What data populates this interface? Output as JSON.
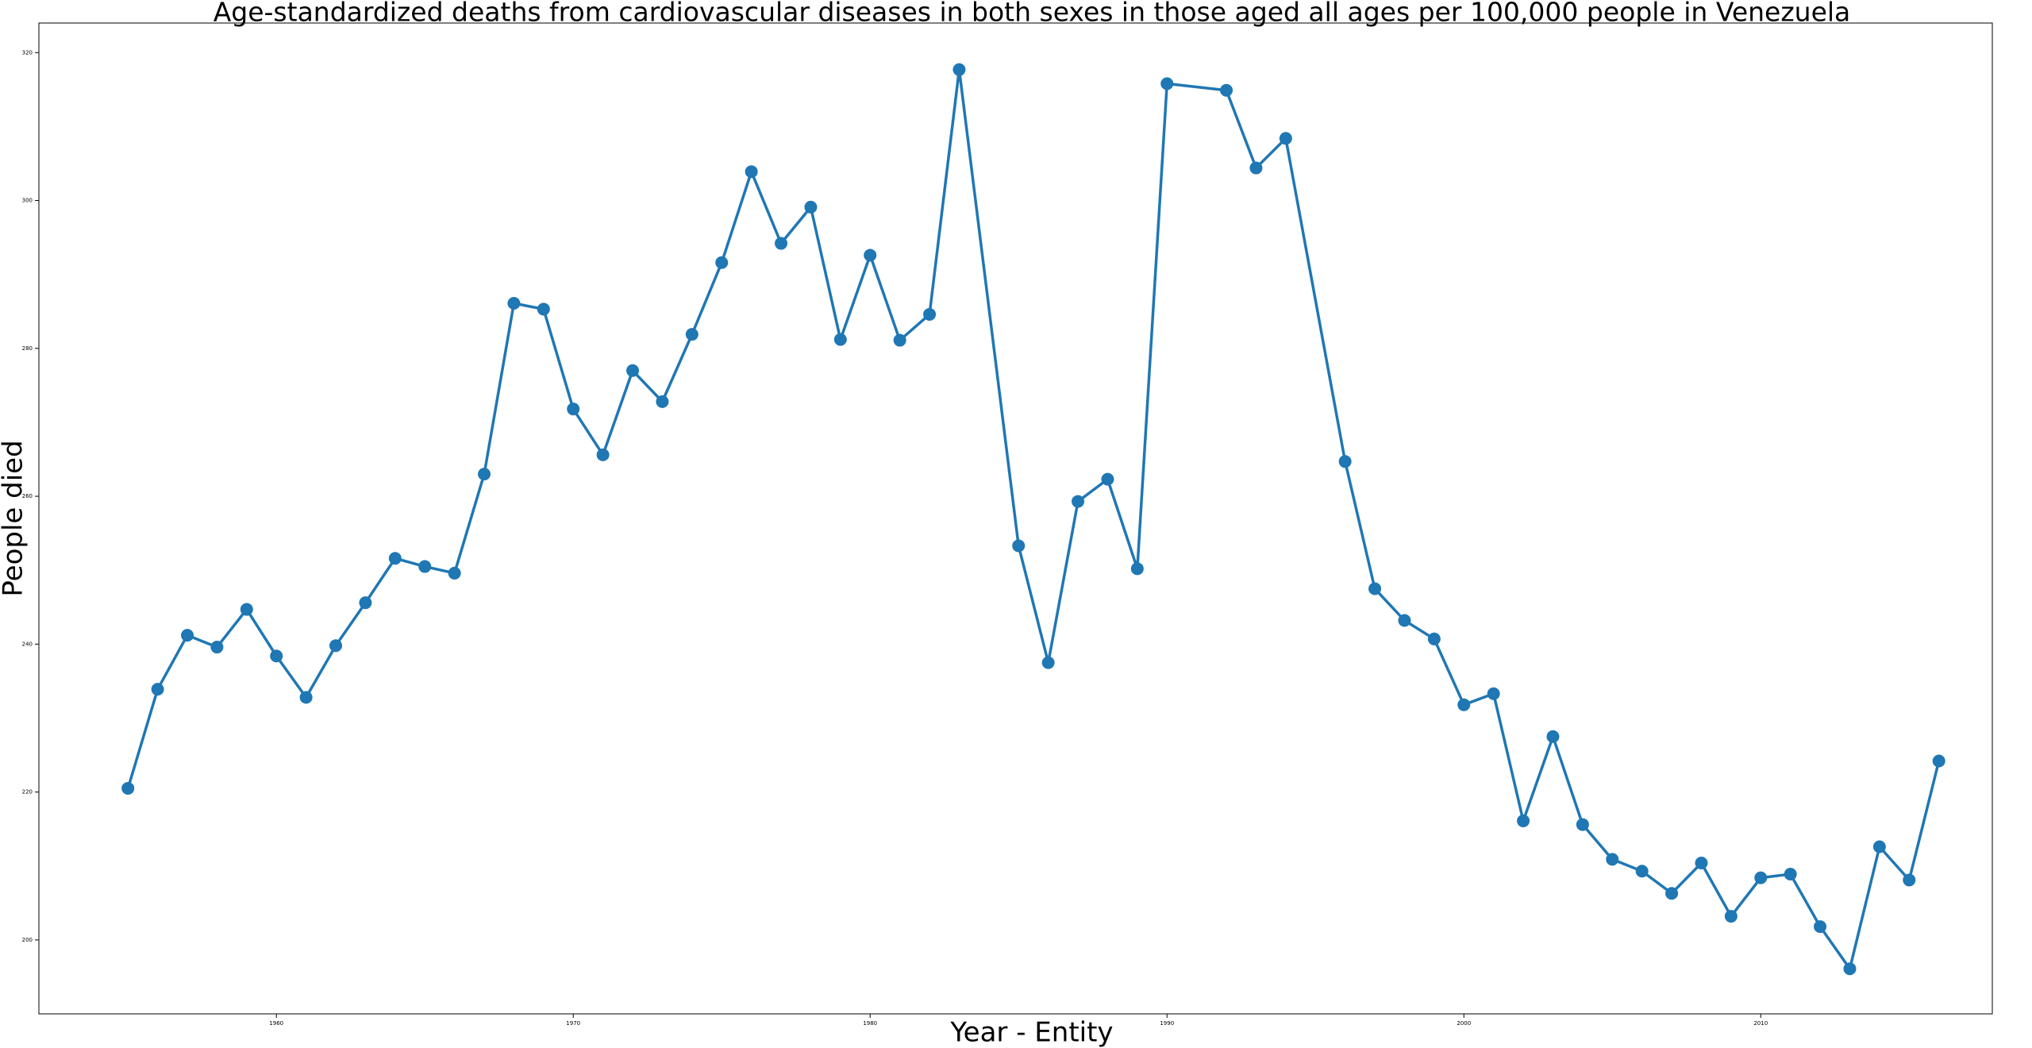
{
  "chart_data": {
    "type": "line",
    "title": "Age-standardized deaths from cardiovascular diseases in both sexes in those aged all ages per 100,000 people in Venezuela",
    "x_label": "Year - Entity",
    "y_label": "People died",
    "x": [
      1955,
      1956,
      1957,
      1958,
      1959,
      1960,
      1961,
      1962,
      1963,
      1964,
      1965,
      1966,
      1967,
      1968,
      1969,
      1970,
      1971,
      1972,
      1973,
      1974,
      1975,
      1976,
      1977,
      1978,
      1979,
      1980,
      1981,
      1982,
      1983,
      1985,
      1986,
      1987,
      1988,
      1989,
      1990,
      1992,
      1993,
      1994,
      1996,
      1997,
      1998,
      1999,
      2000,
      2001,
      2002,
      2003,
      2004,
      2005,
      2006,
      2007,
      2008,
      2009,
      2010,
      2011,
      2012,
      2013,
      2014,
      2015,
      2016
    ],
    "series": [
      {
        "name": "Venezuela",
        "color": "#1f77b4",
        "values": [
          220.5,
          233.9,
          241.2,
          239.6,
          244.7,
          238.4,
          232.8,
          239.8,
          245.6,
          251.6,
          250.5,
          249.6,
          263.0,
          286.1,
          285.3,
          271.8,
          265.6,
          277.0,
          272.8,
          281.9,
          291.6,
          303.9,
          294.2,
          299.1,
          281.2,
          292.6,
          281.1,
          284.6,
          317.7,
          253.3,
          237.5,
          259.3,
          262.3,
          250.2,
          315.8,
          314.9,
          304.4,
          308.4,
          264.7,
          247.5,
          243.2,
          240.7,
          231.8,
          233.3,
          216.1,
          227.5,
          215.6,
          210.9,
          209.3,
          206.3,
          210.4,
          203.2,
          208.4,
          208.9,
          201.8,
          196.1,
          212.6,
          208.1,
          224.2
        ]
      }
    ],
    "xlim": [
      1952,
      2017.8
    ],
    "xticks": [
      1960,
      1970,
      1980,
      1990,
      2000,
      2010
    ],
    "ylim": [
      190,
      324
    ],
    "yticks": [
      200,
      220,
      240,
      260,
      280,
      300,
      320
    ]
  }
}
